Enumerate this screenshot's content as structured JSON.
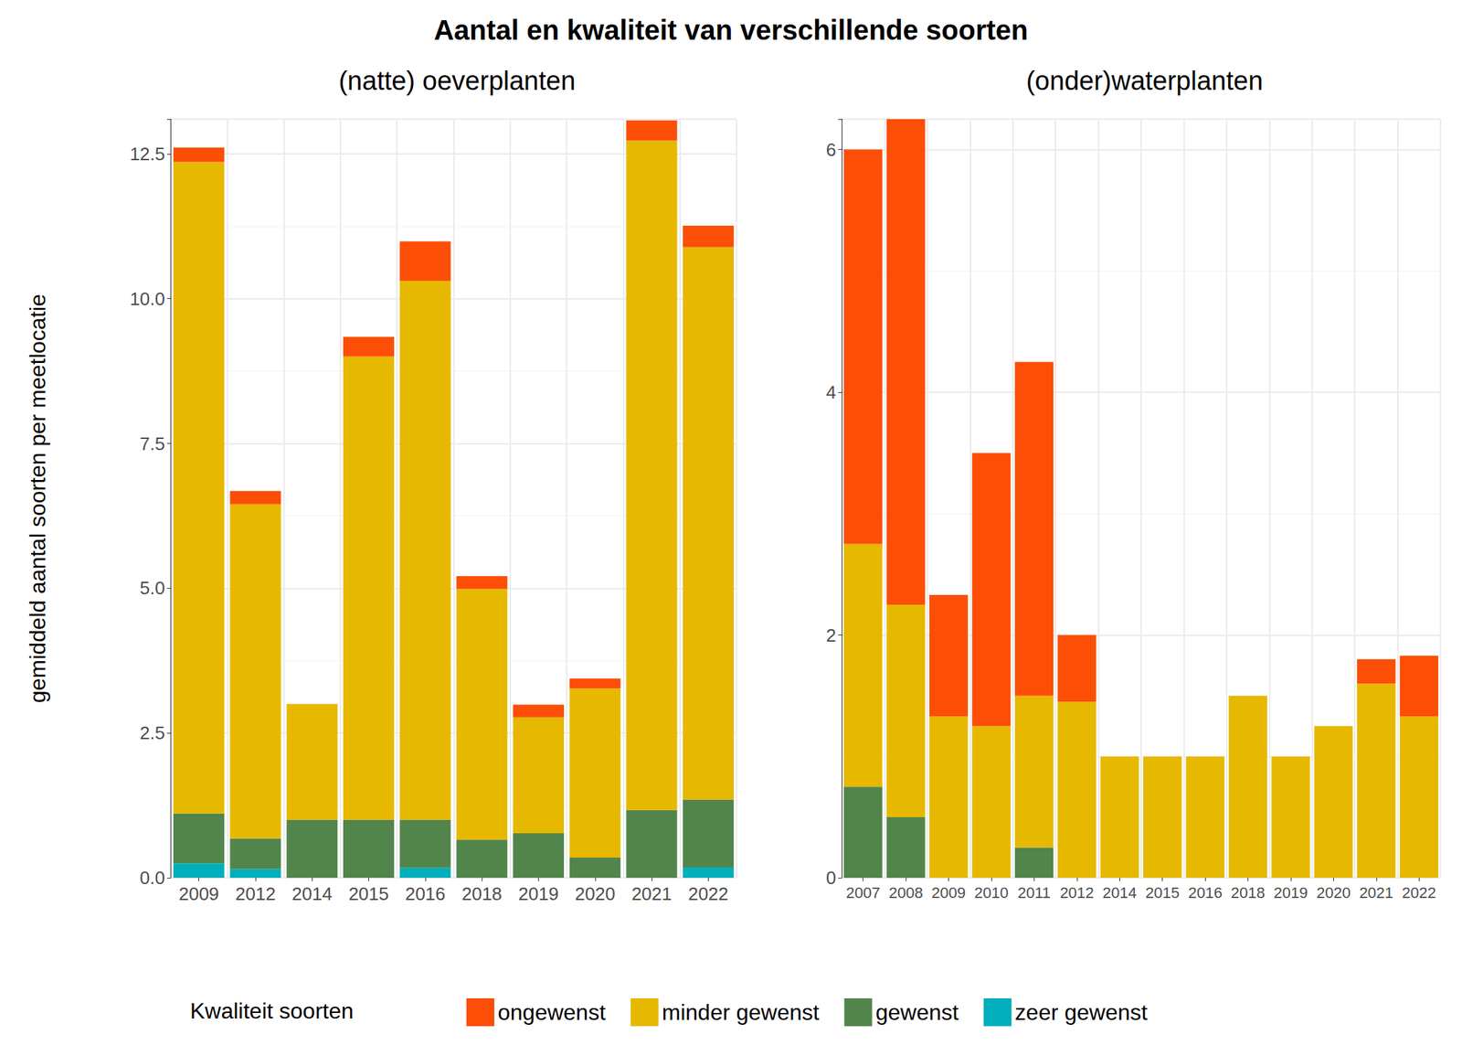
{
  "title": "Aantal en kwaliteit van verschillende soorten",
  "y_label": "gemiddeld aantal soorten per meetlocatie",
  "legend_title": "Kwaliteit soorten",
  "legend": "bottom",
  "chart_data": [
    {
      "type": "bar",
      "stacked": true,
      "grid": true,
      "subtitle": "(natte) oeverplanten",
      "categories": [
        "2009",
        "2012",
        "2014",
        "2015",
        "2016",
        "2018",
        "2019",
        "2020",
        "2021",
        "2022"
      ],
      "series": [
        {
          "name": "ongewenst",
          "color": "#FC4E07",
          "values": [
            0.25,
            0.23,
            0,
            0.34,
            0.68,
            0.22,
            0.22,
            0.17,
            0.35,
            0.37
          ]
        },
        {
          "name": "minder gewenst",
          "color": "#E7B800",
          "values": [
            11.25,
            5.77,
            2.0,
            8.0,
            9.31,
            4.33,
            2.0,
            2.92,
            11.56,
            9.54
          ]
        },
        {
          "name": "gewenst",
          "color": "#52854C",
          "values": [
            0.86,
            0.53,
            1.0,
            1.0,
            0.83,
            0.66,
            0.77,
            0.35,
            1.17,
            1.17
          ]
        },
        {
          "name": "zeer gewenst",
          "color": "#00AFBB",
          "values": [
            0.25,
            0.15,
            0,
            0,
            0.17,
            0,
            0,
            0,
            0,
            0.18
          ]
        }
      ],
      "ylim": [
        0,
        13.1
      ],
      "yticks": [
        {
          "value": 0,
          "label": "0.0"
        },
        2.5,
        {
          "value": 5,
          "label": "5.0"
        },
        7.5,
        {
          "value": 10,
          "label": "10.0"
        },
        12.5
      ]
    },
    {
      "type": "bar",
      "stacked": true,
      "grid": true,
      "subtitle": "(onder)waterplanten",
      "categories": [
        "2007",
        "2008",
        "2009",
        "2010",
        "2011",
        "2012",
        "2014",
        "2015",
        "2016",
        "2018",
        "2019",
        "2020",
        "2021",
        "2022"
      ],
      "series": [
        {
          "name": "ongewenst",
          "color": "#FC4E07",
          "values": [
            3.25,
            4.0,
            1.0,
            2.25,
            2.75,
            0.55,
            0,
            0,
            0,
            0,
            0,
            0,
            0.2,
            0.5
          ]
        },
        {
          "name": "minder gewenst",
          "color": "#E7B800",
          "values": [
            2.0,
            1.75,
            1.33,
            1.25,
            1.25,
            1.45,
            1.0,
            1.0,
            1.0,
            1.5,
            1.0,
            1.25,
            1.6,
            1.33
          ]
        },
        {
          "name": "gewenst",
          "color": "#52854C",
          "values": [
            0.75,
            0.5,
            0,
            0,
            0.25,
            0,
            0,
            0,
            0,
            0,
            0,
            0,
            0,
            0
          ]
        },
        {
          "name": "zeer gewenst",
          "color": "#00AFBB",
          "values": [
            0,
            0,
            0,
            0,
            0,
            0,
            0,
            0,
            0,
            0,
            0,
            0,
            0,
            0
          ]
        }
      ],
      "ylim": [
        0,
        6.25
      ],
      "yticks": [
        0,
        2,
        4,
        6
      ]
    }
  ]
}
